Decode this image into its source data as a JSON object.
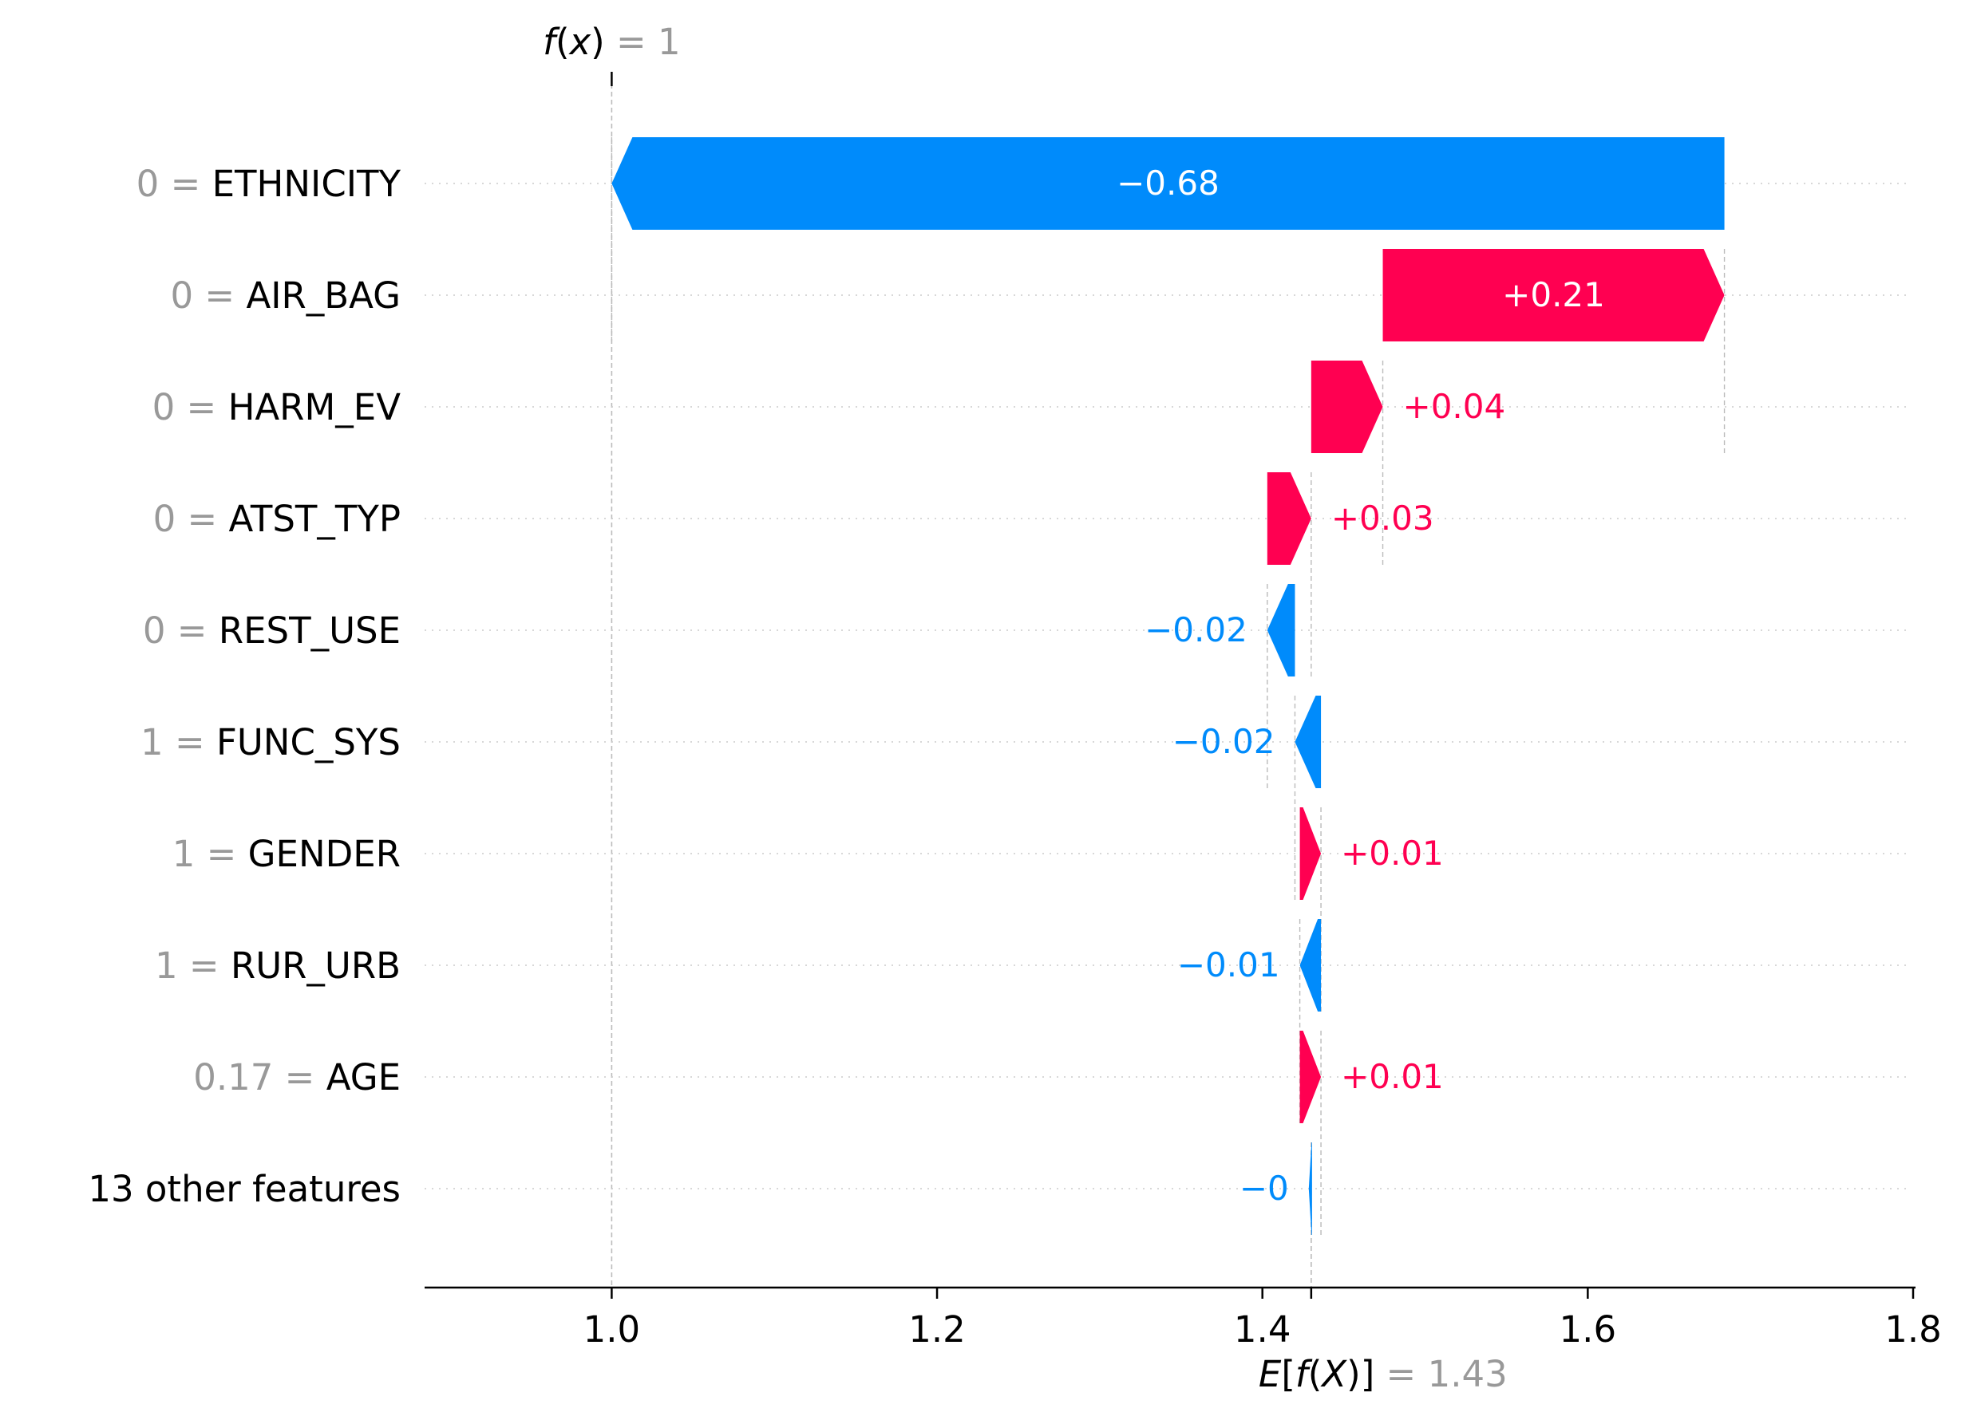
{
  "chart_data": {
    "type": "waterfall",
    "fx": {
      "prefix_f": "f",
      "open": "(",
      "var": "x",
      "close": ")",
      "eq": " = ",
      "value": "1"
    },
    "ex": {
      "prefix_e": "E",
      "open_b": "[",
      "f": "f",
      "open": "(",
      "var": "X",
      "close": ")",
      "close_b": "]",
      "eq": " = ",
      "value": "1.43"
    },
    "base_value": 1.43,
    "output_value": 1.0,
    "xlim": [
      0.885,
      1.8
    ],
    "xticks": [
      {
        "value": 1.0,
        "label": "1.0"
      },
      {
        "value": 1.2,
        "label": "1.2"
      },
      {
        "value": 1.4,
        "label": "1.4"
      },
      {
        "value": 1.6,
        "label": "1.6"
      },
      {
        "value": 1.8,
        "label": "1.8"
      }
    ],
    "features": [
      {
        "value_text": "0",
        "name": "ETHNICITY",
        "start": 1.684,
        "end": 1.0,
        "shap": -0.68,
        "label": "−0.68",
        "sign": "neg",
        "label_inside": true
      },
      {
        "value_text": "0",
        "name": "AIR_BAG",
        "start": 1.474,
        "end": 1.684,
        "shap": 0.21,
        "label": "+0.21",
        "sign": "pos",
        "label_inside": true
      },
      {
        "value_text": "0",
        "name": "HARM_EV",
        "start": 1.43,
        "end": 1.474,
        "shap": 0.04,
        "label": "+0.04",
        "sign": "pos",
        "label_inside": false
      },
      {
        "value_text": "0",
        "name": "ATST_TYP",
        "start": 1.403,
        "end": 1.43,
        "shap": 0.03,
        "label": "+0.03",
        "sign": "pos",
        "label_inside": false
      },
      {
        "value_text": "0",
        "name": "REST_USE",
        "start": 1.42,
        "end": 1.403,
        "shap": -0.02,
        "label": "−0.02",
        "sign": "neg",
        "label_inside": false
      },
      {
        "value_text": "1",
        "name": "FUNC_SYS",
        "start": 1.436,
        "end": 1.42,
        "shap": -0.02,
        "label": "−0.02",
        "sign": "neg",
        "label_inside": false
      },
      {
        "value_text": "1",
        "name": "GENDER",
        "start": 1.423,
        "end": 1.436,
        "shap": 0.01,
        "label": "+0.01",
        "sign": "pos",
        "label_inside": false
      },
      {
        "value_text": "1",
        "name": "RUR_URB",
        "start": 1.436,
        "end": 1.423,
        "shap": -0.01,
        "label": "−0.01",
        "sign": "neg",
        "label_inside": false
      },
      {
        "value_text": "0.17",
        "name": "AGE",
        "start": 1.423,
        "end": 1.436,
        "shap": 0.01,
        "label": "+0.01",
        "sign": "pos",
        "label_inside": false
      },
      {
        "value_text": "",
        "name": "13 other features",
        "start": 1.4305,
        "end": 1.4285,
        "shap": -0.0,
        "label": "−0",
        "sign": "neg",
        "label_inside": false
      }
    ],
    "colors": {
      "positive": "#ff0051",
      "negative": "#008bfb",
      "axis": "#000000",
      "grid": "#cccccc",
      "guide": "#bbbbbb",
      "muted": "#999999",
      "inside_label": "#ffffff"
    },
    "grid": "dotted-rows"
  }
}
